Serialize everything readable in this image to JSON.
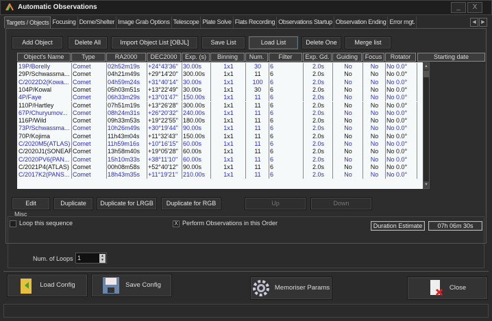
{
  "window": {
    "title": "Automatic Observations",
    "minimize": "_",
    "close": "X"
  },
  "tabs": [
    "Targets / Objects",
    "Focusing",
    "Dome/Shelter",
    "Image Grab Options",
    "Telescope",
    "Plate Solve",
    "Flats Recording",
    "Observations Startup",
    "Observation Ending",
    "Error mgt."
  ],
  "toolbar": {
    "add": "Add Object",
    "delete_all": "Delete All",
    "import": "Import Object List [OBJL]",
    "save": "Save List",
    "load": "Load List",
    "delete_one": "Delete One",
    "merge": "Merge list"
  },
  "columns": [
    "Object's Name",
    "Type",
    "RA2000",
    "DEC2000",
    "Exp. (s)",
    "Binning",
    "Num.",
    "Filter",
    "Exp. Gd.",
    "Guiding",
    "Focus",
    "Rotator",
    "Starting date"
  ],
  "rows": [
    [
      "19P/Borelly",
      "Comet",
      "02h52m19s",
      "+24°43'36\"",
      "30.00s",
      "1x1",
      "30",
      "6",
      "2.0s",
      "No",
      "No",
      "No  0.0°",
      ""
    ],
    [
      "29P/Schwassma...",
      "Comet",
      "04h21m49s",
      "+29°14'20\"",
      "300.00s",
      "1x1",
      "11",
      "6",
      "2.0s",
      "No",
      "No",
      "No  0.0°",
      ""
    ],
    [
      "C/2022D2(Kowa...",
      "Comet",
      "04h59m24s",
      "+31°40'14\"",
      "30.00s",
      "1x1",
      "100",
      "6",
      "2.0s",
      "No",
      "No",
      "No  0.0°",
      ""
    ],
    [
      "104P/Kowal",
      "Comet",
      "05h03m51s",
      "+13°22'49\"",
      "30.00s",
      "1x1",
      "30",
      "6",
      "2.0s",
      "No",
      "No",
      "No  0.0°",
      ""
    ],
    [
      "4P/Faye",
      "Comet",
      "06h33m29s",
      "+13°01'47\"",
      "150.00s",
      "1x1",
      "11",
      "6",
      "2.0s",
      "No",
      "No",
      "No  0.0°",
      ""
    ],
    [
      "110P/Hartley",
      "Comet",
      "07h51m19s",
      "+13°26'28\"",
      "300.00s",
      "1x1",
      "11",
      "6",
      "2.0s",
      "No",
      "No",
      "No  0.0°",
      ""
    ],
    [
      "67P/Churyumov...",
      "Comet",
      "08h24m31s",
      "+26°20'32\"",
      "240.00s",
      "1x1",
      "11",
      "6",
      "2.0s",
      "No",
      "No",
      "No  0.0°",
      ""
    ],
    [
      "116P/Wild",
      "Comet",
      "09h33m53s",
      "+19°22'55\"",
      "180.00s",
      "1x1",
      "11",
      "6",
      "2.0s",
      "No",
      "No",
      "No  0.0°",
      ""
    ],
    [
      "73P/Schwassma...",
      "Comet",
      "10h26m49s",
      "+30°19'44\"",
      "90.00s",
      "1x1",
      "11",
      "6",
      "2.0s",
      "No",
      "No",
      "No  0.0°",
      ""
    ],
    [
      "70P/Kojima",
      "Comet",
      "11h43m04s",
      "+11°32'43\"",
      "150.00s",
      "1x1",
      "11",
      "6",
      "2.0s",
      "No",
      "No",
      "No  0.0°",
      ""
    ],
    [
      "C/2020M5(ATLAS)",
      "Comet",
      "11h59m16s",
      "+10°16'15\"",
      "60.00s",
      "1x1",
      "11",
      "6",
      "2.0s",
      "No",
      "No",
      "No  0.0°",
      ""
    ],
    [
      "C/2020J1(SONEAR)",
      "Comet",
      "13h58m40s",
      "+19°05'28\"",
      "60.00s",
      "1x1",
      "11",
      "6",
      "2.0s",
      "No",
      "No",
      "No  0.0°",
      ""
    ],
    [
      "C/2020PV6(PAN...",
      "Comet",
      "15h10m33s",
      "+38°11'10\"",
      "60.00s",
      "1x1",
      "11",
      "6",
      "2.0s",
      "No",
      "No",
      "No  0.0°",
      ""
    ],
    [
      "C/2021P4(ATLAS)",
      "Comet",
      "00h08m58s",
      "+52°40'12\"",
      "90.00s",
      "1x1",
      "11",
      "6",
      "2.0s",
      "No",
      "No",
      "No  0.0°",
      ""
    ],
    [
      "C/2017K2(PANS...",
      "Comet",
      "18h43m35s",
      "+11°19'21\"",
      "210.00s",
      "1x1",
      "11",
      "6",
      "2.0s",
      "No",
      "No",
      "No  0.0°",
      ""
    ]
  ],
  "row_colors": {
    "odd": "#2a2ad0",
    "even": "#111111"
  },
  "edit_bar": {
    "edit": "Edit",
    "duplicate": "Duplicate",
    "dup_lrgb": "Duplicate for LRGB",
    "dup_rgb": "Duplicate for RGB",
    "up": "Up",
    "down": "Down"
  },
  "misc": {
    "legend": "Misc",
    "loop": "Loop this sequence",
    "loop_checked": false,
    "perform_order": "Perform Observations in this Order",
    "perform_checked": true,
    "check_mark": "X",
    "duration_label": "Duration Estimate",
    "duration_value": "07h 06m 30s",
    "loops_label": "Num. of Loops",
    "loops_value": "1"
  },
  "footer": {
    "load": "Load Config",
    "save": "Save Config",
    "memorise": "Memoriser Params",
    "close": "Close"
  }
}
